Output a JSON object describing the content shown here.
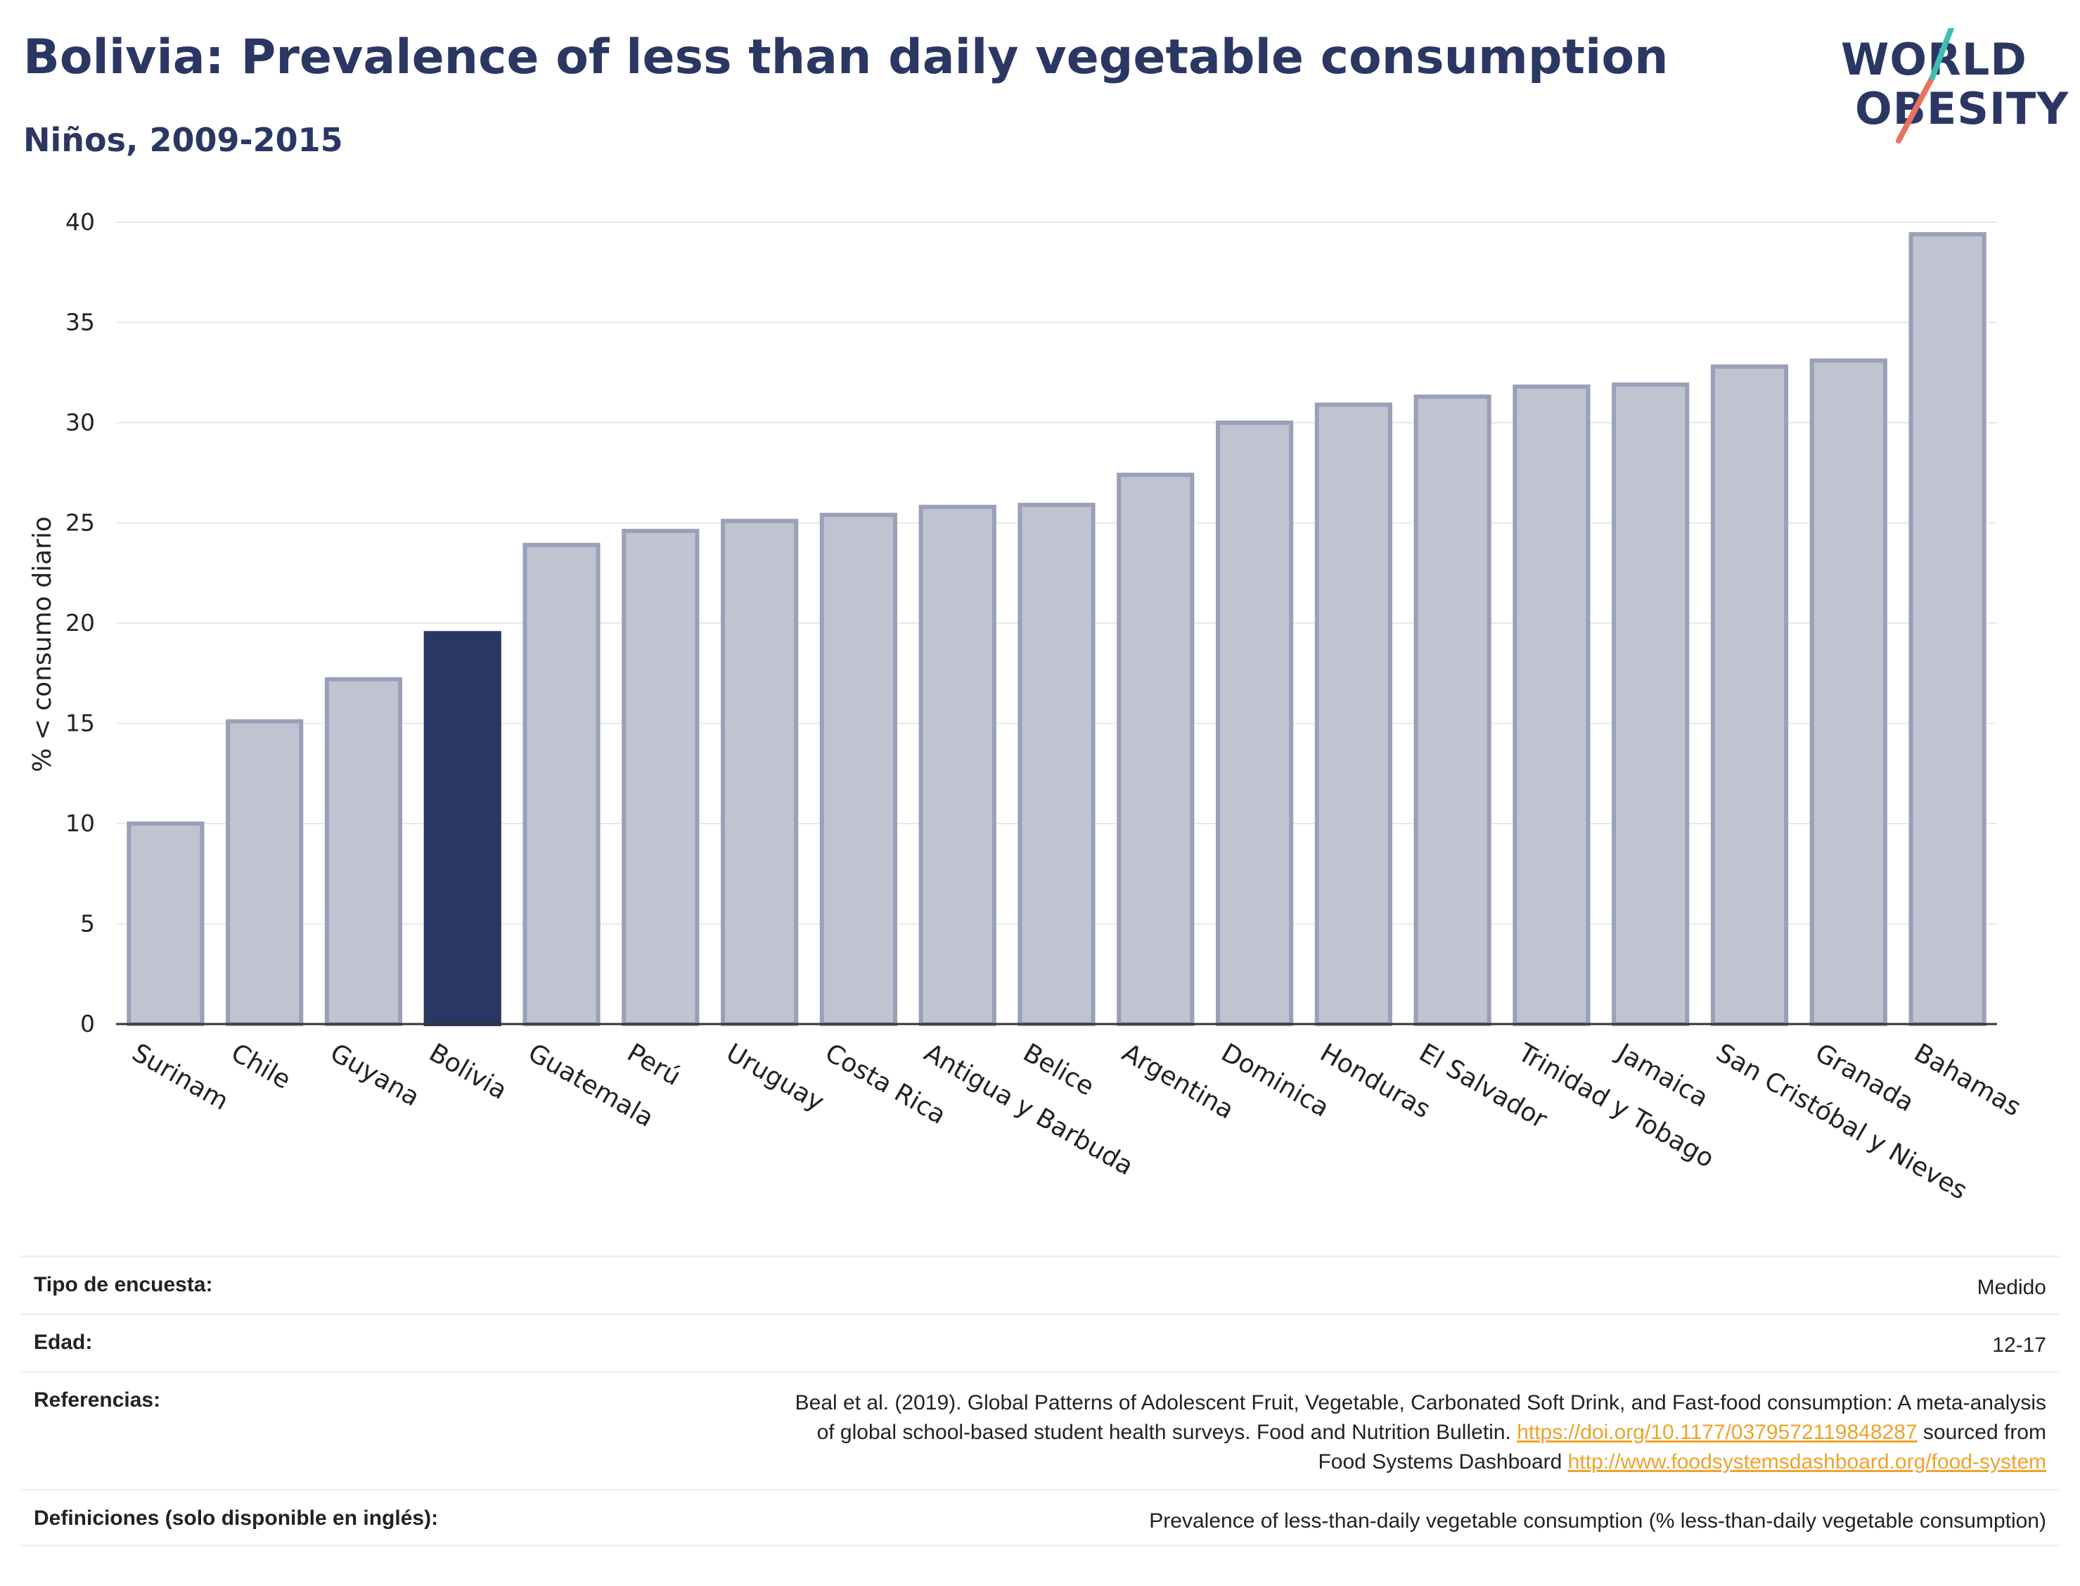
{
  "header": {
    "title": "Bolivia: Prevalence of less than daily vegetable consumption",
    "subtitle": "Niños, 2009-2015"
  },
  "logo": {
    "line1": "WORLD",
    "line2": "OBESITY"
  },
  "chart_data": {
    "type": "bar",
    "ylabel": "% < consumo diario",
    "xlabel": "",
    "ylim": [
      0,
      40
    ],
    "yticks": [
      0,
      5,
      10,
      15,
      20,
      25,
      30,
      35,
      40
    ],
    "grid": true,
    "highlight": "Bolivia",
    "colors": {
      "default": "#c0c3d0",
      "default_border": "#9aa0b8",
      "highlight": "#2b3763"
    },
    "categories": [
      "Surinam",
      "Chile",
      "Guyana",
      "Bolivia",
      "Guatemala",
      "Perú",
      "Uruguay",
      "Costa Rica",
      "Antigua y Barbuda",
      "Belice",
      "Argentina",
      "Dominica",
      "Honduras",
      "El Salvador",
      "Trinidad y Tobago",
      "Jamaica",
      "San Cristóbal y Nieves",
      "Granada",
      "Bahamas"
    ],
    "values": [
      10.0,
      15.1,
      17.2,
      19.5,
      23.9,
      24.6,
      25.1,
      25.4,
      25.8,
      25.9,
      27.4,
      30.0,
      30.9,
      31.3,
      31.8,
      31.9,
      32.8,
      33.1,
      39.4
    ]
  },
  "footer": {
    "rows": [
      {
        "label": "Tipo de encuesta:",
        "value": "Medido"
      },
      {
        "label": "Edad:",
        "value": "12-17"
      }
    ],
    "references": {
      "label": "Referencias:",
      "line1": "Beal et al. (2019). Global Patterns of Adolescent Fruit, Vegetable, Carbonated Soft Drink, and Fast-food consumption: A meta-analysis",
      "line2_pre": "of global school-based student health surveys. Food and Nutrition Bulletin.",
      "link1": "https://doi.org/10.1177/0379572119848287",
      "line2_post": "sourced from",
      "line3_pre": "Food Systems Dashboard",
      "link2": "http://www.foodsystemsdashboard.org/food-system"
    },
    "definitions": {
      "label": "Definiciones (solo disponible en inglés):",
      "value": "Prevalence of less-than-daily vegetable consumption (% less-than-daily vegetable consumption)"
    }
  }
}
